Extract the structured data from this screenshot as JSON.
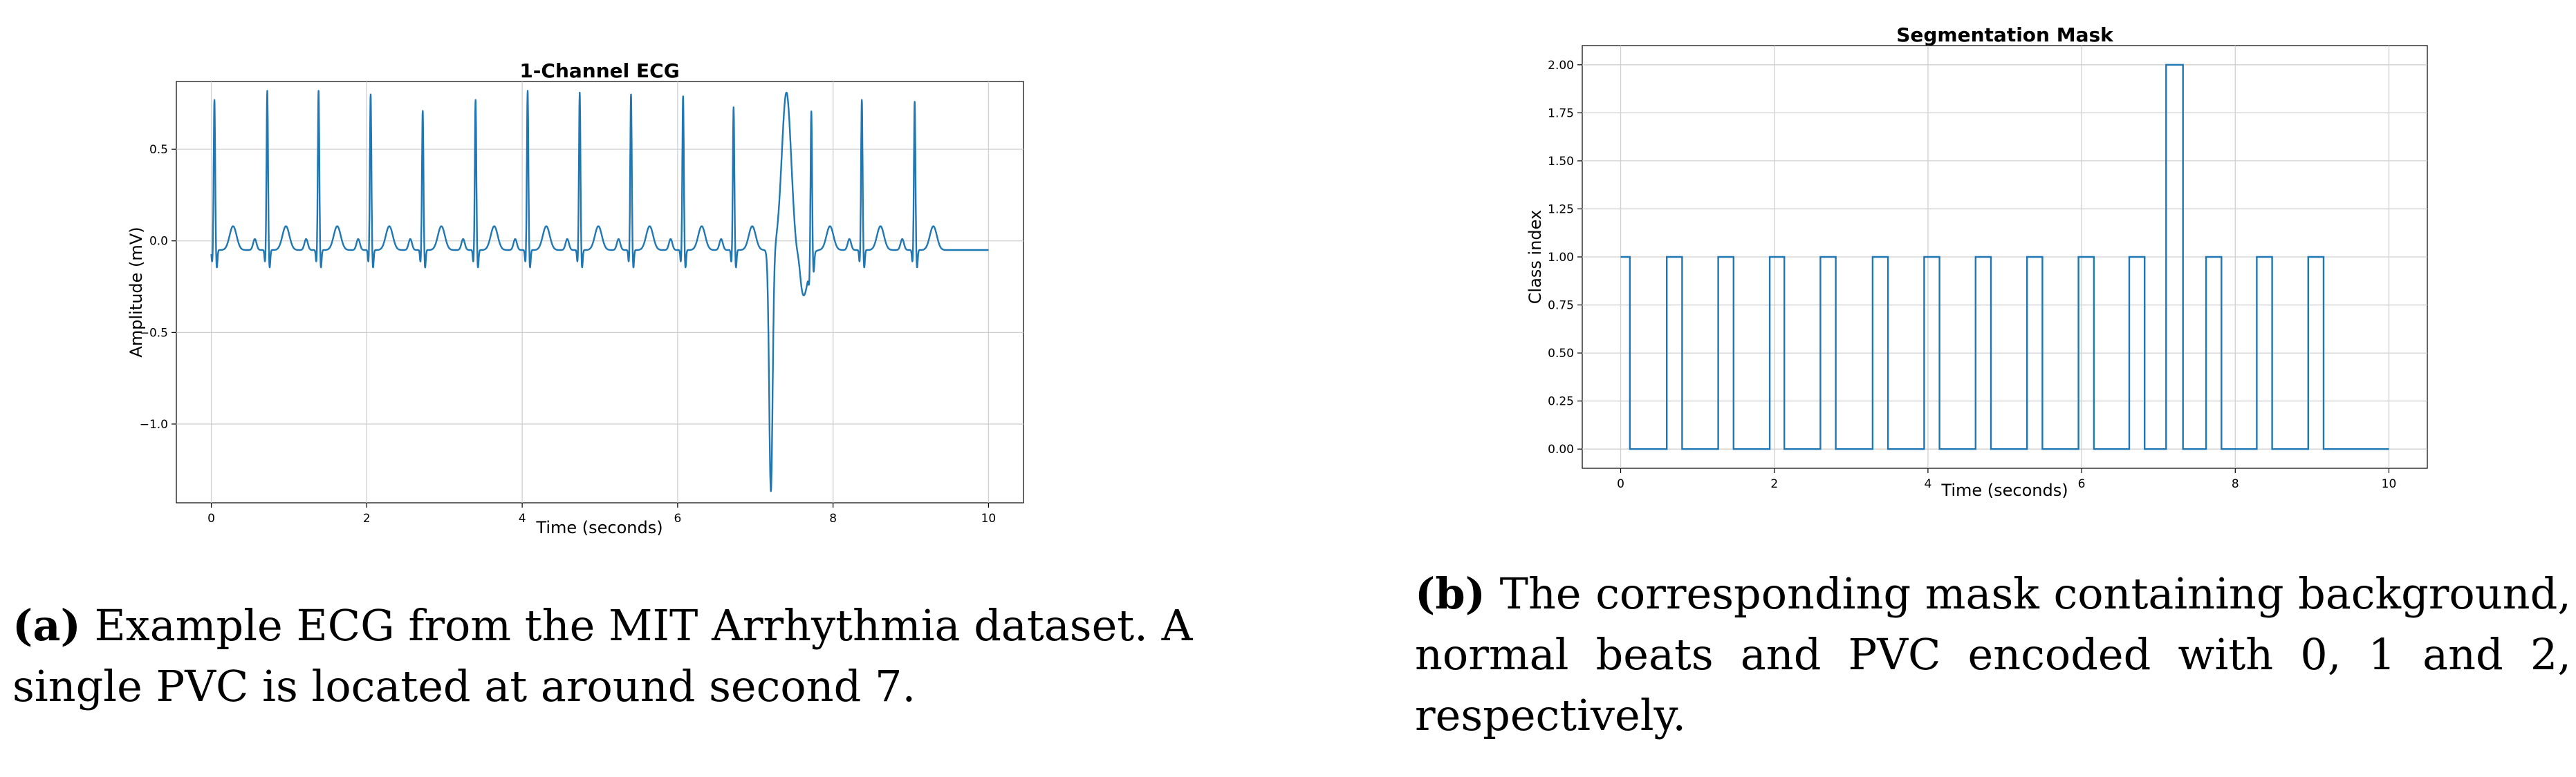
{
  "chart_data": [
    {
      "type": "line",
      "title": "1-Channel ECG",
      "xlabel": "Time (seconds)",
      "ylabel": "Amplitude (mV)",
      "xlim": [
        -0.45,
        10.45
      ],
      "ylim": [
        -1.43,
        0.87
      ],
      "xticks": [
        0,
        2,
        4,
        6,
        8,
        10
      ],
      "xtick_labels": [
        "0",
        "2",
        "4",
        "6",
        "8",
        "10"
      ],
      "yticks": [
        -1.0,
        -0.5,
        0.0,
        0.5
      ],
      "ytick_labels": [
        "−1.0",
        "−0.5",
        "0.0",
        "0.5"
      ],
      "grid": true,
      "color": "#1f77b4",
      "signal": {
        "duration": 10,
        "baseline": -0.05,
        "r_peaks": [
          {
            "t": 0.04,
            "amp": 0.74
          },
          {
            "t": 0.72,
            "amp": 0.79
          },
          {
            "t": 1.38,
            "amp": 0.79
          },
          {
            "t": 2.05,
            "amp": 0.77
          },
          {
            "t": 2.72,
            "amp": 0.68
          },
          {
            "t": 3.4,
            "amp": 0.74
          },
          {
            "t": 4.07,
            "amp": 0.79
          },
          {
            "t": 4.74,
            "amp": 0.78
          },
          {
            "t": 5.4,
            "amp": 0.77
          },
          {
            "t": 6.07,
            "amp": 0.76
          },
          {
            "t": 6.72,
            "amp": 0.7
          },
          {
            "t": 7.72,
            "amp": 0.74
          },
          {
            "t": 8.37,
            "amp": 0.74
          },
          {
            "t": 9.05,
            "amp": 0.73
          }
        ],
        "pvc": {
          "t": 7.2,
          "min": -1.37,
          "max": 0.77
        }
      }
    },
    {
      "type": "line",
      "title": "Segmentation Mask",
      "xlabel": "Time (seconds)",
      "ylabel": "Class index",
      "xlim": [
        -0.5,
        10.5
      ],
      "ylim": [
        -0.1,
        2.1
      ],
      "xticks": [
        0,
        2,
        4,
        6,
        8,
        10
      ],
      "xtick_labels": [
        "0",
        "2",
        "4",
        "6",
        "8",
        "10"
      ],
      "yticks": [
        0,
        0.25,
        0.5,
        0.75,
        1.0,
        1.25,
        1.5,
        1.75,
        2.0
      ],
      "ytick_labels": [
        "0.00",
        "0.25",
        "0.50",
        "0.75",
        "1.00",
        "1.25",
        "1.50",
        "1.75",
        "2.00"
      ],
      "grid": true,
      "color": "#1f77b4",
      "segments": [
        {
          "start": 0.0,
          "end": 0.12,
          "class": 1
        },
        {
          "start": 0.12,
          "end": 0.6,
          "class": 0
        },
        {
          "start": 0.6,
          "end": 0.8,
          "class": 1
        },
        {
          "start": 0.8,
          "end": 1.27,
          "class": 0
        },
        {
          "start": 1.27,
          "end": 1.47,
          "class": 1
        },
        {
          "start": 1.47,
          "end": 1.94,
          "class": 0
        },
        {
          "start": 1.94,
          "end": 2.13,
          "class": 1
        },
        {
          "start": 2.13,
          "end": 2.6,
          "class": 0
        },
        {
          "start": 2.6,
          "end": 2.8,
          "class": 1
        },
        {
          "start": 2.8,
          "end": 3.28,
          "class": 0
        },
        {
          "start": 3.28,
          "end": 3.48,
          "class": 1
        },
        {
          "start": 3.48,
          "end": 3.95,
          "class": 0
        },
        {
          "start": 3.95,
          "end": 4.15,
          "class": 1
        },
        {
          "start": 4.15,
          "end": 4.62,
          "class": 0
        },
        {
          "start": 4.62,
          "end": 4.82,
          "class": 1
        },
        {
          "start": 4.82,
          "end": 5.29,
          "class": 0
        },
        {
          "start": 5.29,
          "end": 5.49,
          "class": 1
        },
        {
          "start": 5.49,
          "end": 5.96,
          "class": 0
        },
        {
          "start": 5.96,
          "end": 6.16,
          "class": 1
        },
        {
          "start": 6.16,
          "end": 6.62,
          "class": 0
        },
        {
          "start": 6.62,
          "end": 6.82,
          "class": 1
        },
        {
          "start": 6.82,
          "end": 7.1,
          "class": 0
        },
        {
          "start": 7.1,
          "end": 7.32,
          "class": 2
        },
        {
          "start": 7.32,
          "end": 7.62,
          "class": 0
        },
        {
          "start": 7.62,
          "end": 7.82,
          "class": 1
        },
        {
          "start": 7.82,
          "end": 8.28,
          "class": 0
        },
        {
          "start": 8.28,
          "end": 8.48,
          "class": 1
        },
        {
          "start": 8.48,
          "end": 8.95,
          "class": 0
        },
        {
          "start": 8.95,
          "end": 9.15,
          "class": 1
        },
        {
          "start": 9.15,
          "end": 10.0,
          "class": 0
        }
      ]
    }
  ],
  "captions": {
    "a": {
      "tag": "(a)",
      "text": " Example ECG from the MIT Arrhythmia dataset. A single PVC is located at around second 7."
    },
    "b": {
      "tag": "(b)",
      "text": " The corresponding mask containing background, normal beats and PVC encoded with 0, 1 and 2, respectively."
    }
  }
}
